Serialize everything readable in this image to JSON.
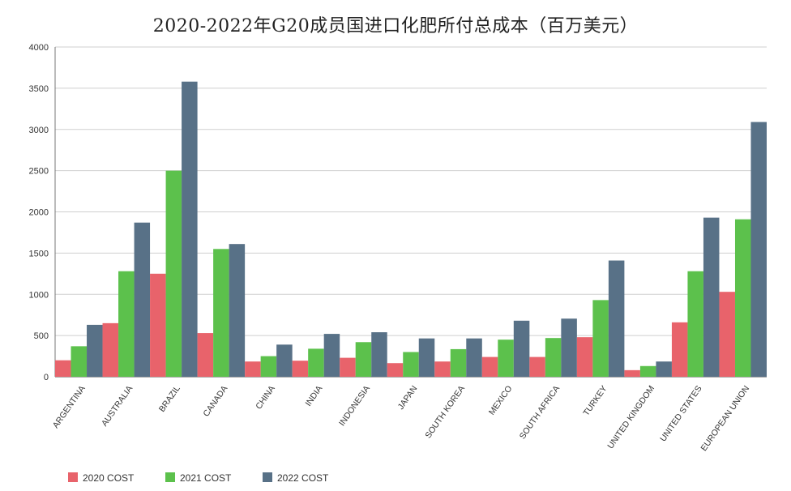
{
  "chart_data": {
    "type": "bar",
    "title": "2020-2022年G20成员国进口化肥所付总成本（百万美元）",
    "xlabel": "",
    "ylabel": "",
    "ylim": [
      0,
      4000
    ],
    "yticks": [
      0,
      500,
      1000,
      1500,
      2000,
      2500,
      3000,
      3500,
      4000
    ],
    "grid": true,
    "legend_position": "bottom-left",
    "categories": [
      "ARGENTINA",
      "AUSTRALIA",
      "BRAZIL",
      "CANADA",
      "CHINA",
      "INDIA",
      "INDONESIA",
      "JAPAN",
      "SOUTH KOREA",
      "MEXICO",
      "SOUTH AFRICA",
      "TURKEY",
      "UNITED KINGDOM",
      "UNITED STATES",
      "EUROPEAN UNION"
    ],
    "series": [
      {
        "name": "2020 COST",
        "color": "#e8636b",
        "values": [
          200,
          650,
          1250,
          530,
          185,
          195,
          230,
          165,
          185,
          240,
          240,
          480,
          80,
          660,
          1030
        ]
      },
      {
        "name": "2021 COST",
        "color": "#5cc14c",
        "values": [
          370,
          1280,
          2500,
          1550,
          250,
          340,
          420,
          300,
          335,
          450,
          470,
          930,
          130,
          1280,
          1910
        ]
      },
      {
        "name": "2022 COST",
        "color": "#587187",
        "values": [
          630,
          1870,
          3580,
          1610,
          390,
          520,
          540,
          465,
          465,
          680,
          705,
          1410,
          185,
          1930,
          3090
        ]
      }
    ]
  }
}
